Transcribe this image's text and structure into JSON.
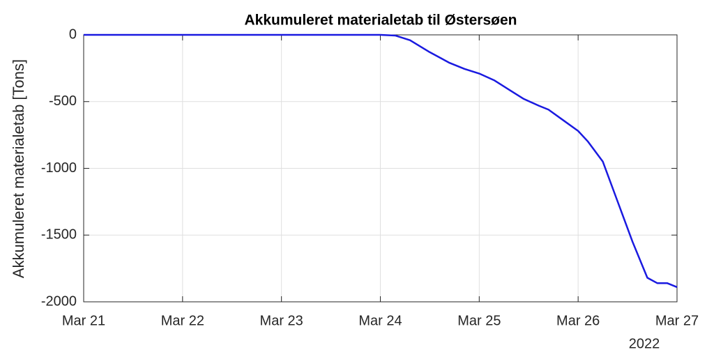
{
  "chart_data": {
    "type": "line",
    "title": "Akkumuleret materialetab til Østersøen",
    "y_label": "Akkumuleret materialetab [Tons]",
    "x_secondary_label": "2022",
    "x": [
      21,
      24.0,
      24.15,
      24.3,
      24.5,
      24.7,
      24.85,
      25.0,
      25.15,
      25.3,
      25.45,
      25.6,
      25.7,
      25.85,
      26.0,
      26.1,
      26.25,
      26.4,
      26.55,
      26.7,
      26.8,
      26.9,
      27.0
    ],
    "series": [
      {
        "name": "Akkumuleret materialetab",
        "color": "#1a1ae0",
        "values": [
          0,
          0,
          -5,
          -40,
          -130,
          -210,
          -255,
          -290,
          -340,
          -410,
          -480,
          -530,
          -560,
          -640,
          -720,
          -800,
          -950,
          -1250,
          -1550,
          -1820,
          -1860,
          -1860,
          -1890
        ]
      }
    ],
    "xlim": [
      21,
      27
    ],
    "xticks": [
      {
        "value": 21,
        "label": "Mar 21"
      },
      {
        "value": 22,
        "label": "Mar 22"
      },
      {
        "value": 23,
        "label": "Mar 23"
      },
      {
        "value": 24,
        "label": "Mar 24"
      },
      {
        "value": 25,
        "label": "Mar 25"
      },
      {
        "value": 26,
        "label": "Mar 26"
      },
      {
        "value": 27,
        "label": "Mar 27"
      }
    ],
    "ylim": [
      -2000,
      0
    ],
    "yticks": [
      0,
      -500,
      -1000,
      -1500,
      -2000
    ],
    "grid": true
  }
}
